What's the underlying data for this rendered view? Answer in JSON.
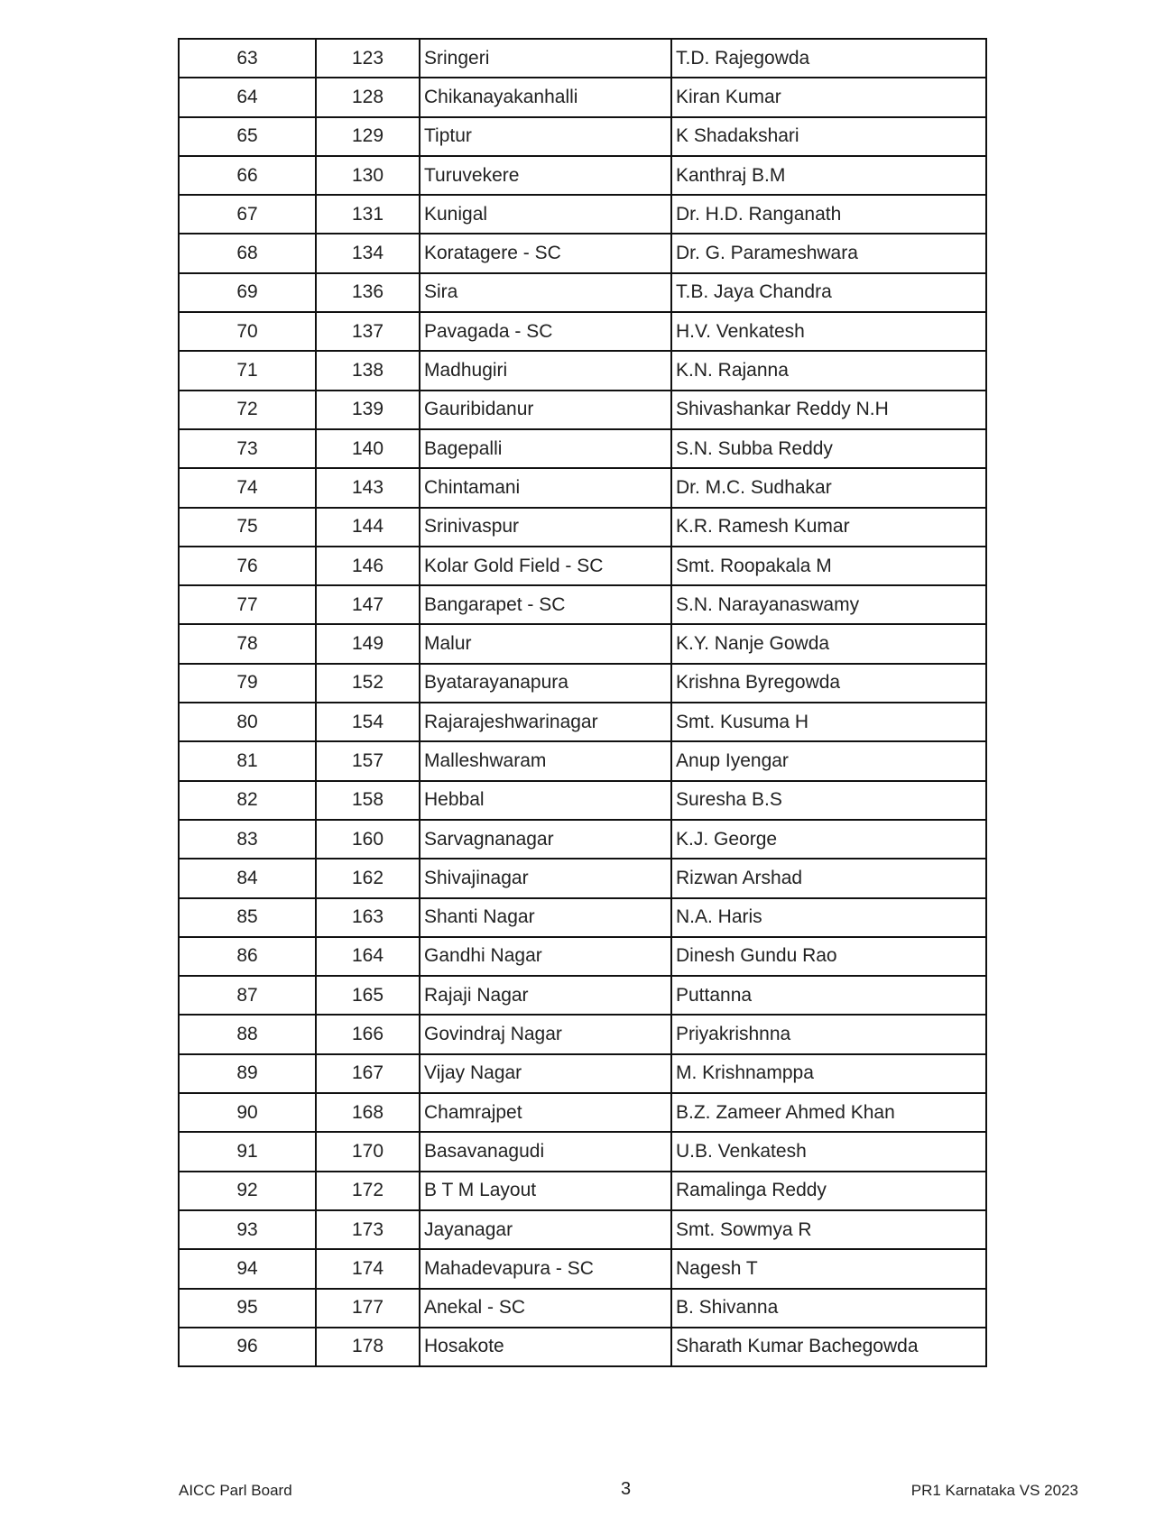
{
  "table": {
    "rows": [
      [
        "63",
        "123",
        "Sringeri",
        "T.D. Rajegowda"
      ],
      [
        "64",
        "128",
        "Chikanayakanhalli",
        "Kiran Kumar"
      ],
      [
        "65",
        "129",
        "Tiptur",
        "K Shadakshari"
      ],
      [
        "66",
        "130",
        "Turuvekere",
        "Kanthraj B.M"
      ],
      [
        "67",
        "131",
        "Kunigal",
        "Dr. H.D. Ranganath"
      ],
      [
        "68",
        "134",
        "Koratagere - SC",
        "Dr. G. Parameshwara"
      ],
      [
        "69",
        "136",
        "Sira",
        "T.B. Jaya Chandra"
      ],
      [
        "70",
        "137",
        "Pavagada - SC",
        "H.V. Venkatesh"
      ],
      [
        "71",
        "138",
        "Madhugiri",
        "K.N. Rajanna"
      ],
      [
        "72",
        "139",
        "Gauribidanur",
        "Shivashankar Reddy N.H"
      ],
      [
        "73",
        "140",
        "Bagepalli",
        "S.N. Subba Reddy"
      ],
      [
        "74",
        "143",
        "Chintamani",
        "Dr. M.C. Sudhakar"
      ],
      [
        "75",
        "144",
        "Srinivaspur",
        "K.R. Ramesh Kumar"
      ],
      [
        "76",
        "146",
        "Kolar Gold Field - SC",
        "Smt. Roopakala M"
      ],
      [
        "77",
        "147",
        "Bangarapet - SC",
        "S.N. Narayanaswamy"
      ],
      [
        "78",
        "149",
        "Malur",
        "K.Y. Nanje Gowda"
      ],
      [
        "79",
        "152",
        "Byatarayanapura",
        "Krishna Byregowda"
      ],
      [
        "80",
        "154",
        "Rajarajeshwarinagar",
        "Smt. Kusuma H"
      ],
      [
        "81",
        "157",
        "Malleshwaram",
        "Anup Iyengar"
      ],
      [
        "82",
        "158",
        "Hebbal",
        "Suresha B.S"
      ],
      [
        "83",
        "160",
        "Sarvagnanagar",
        "K.J. George"
      ],
      [
        "84",
        "162",
        "Shivajinagar",
        "Rizwan Arshad"
      ],
      [
        "85",
        "163",
        "Shanti Nagar",
        "N.A. Haris"
      ],
      [
        "86",
        "164",
        "Gandhi Nagar",
        "Dinesh Gundu Rao"
      ],
      [
        "87",
        "165",
        "Rajaji Nagar",
        "Puttanna"
      ],
      [
        "88",
        "166",
        "Govindraj Nagar",
        "Priyakrishnna"
      ],
      [
        "89",
        "167",
        "Vijay Nagar",
        "M. Krishnamppa"
      ],
      [
        "90",
        "168",
        "Chamrajpet",
        "B.Z. Zameer Ahmed Khan"
      ],
      [
        "91",
        "170",
        "Basavanagudi",
        "U.B. Venkatesh"
      ],
      [
        "92",
        "172",
        "B T M Layout",
        "Ramalinga Reddy"
      ],
      [
        "93",
        "173",
        "Jayanagar",
        "Smt. Sowmya R"
      ],
      [
        "94",
        "174",
        "Mahadevapura - SC",
        "Nagesh T"
      ],
      [
        "95",
        "177",
        "Anekal - SC",
        "B. Shivanna"
      ],
      [
        "96",
        "178",
        "Hosakote",
        "Sharath Kumar Bachegowda"
      ]
    ]
  },
  "footer": {
    "left": "AICC Parl Board",
    "page_number": "3",
    "right": "PR1 Karnataka VS 2023"
  }
}
